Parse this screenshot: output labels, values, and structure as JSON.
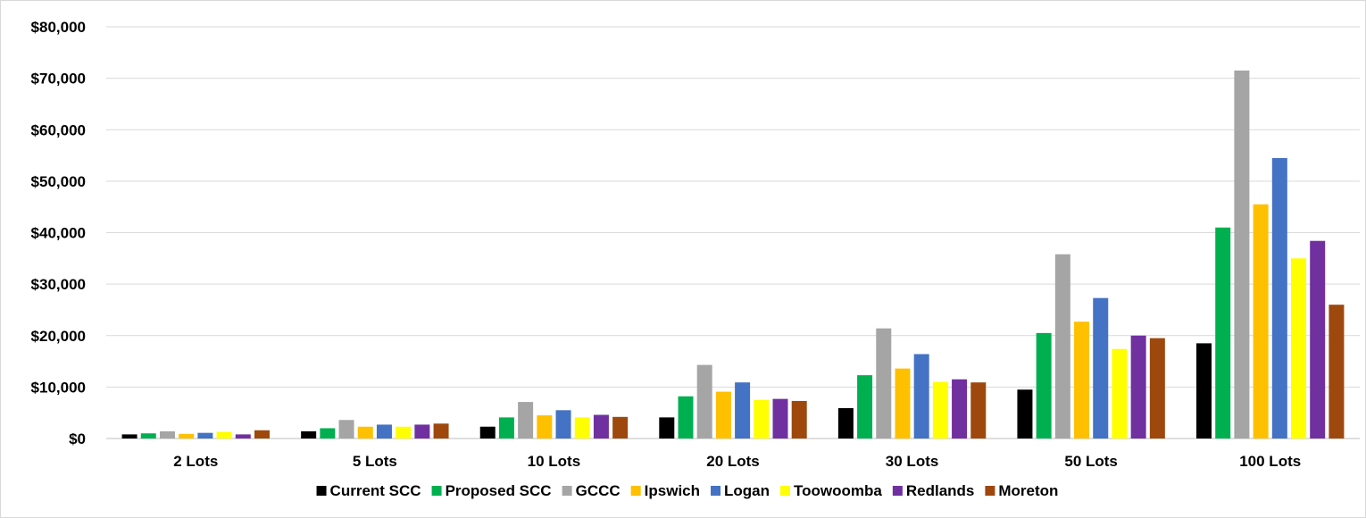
{
  "chart_data": {
    "type": "bar",
    "title": "",
    "xlabel": "",
    "ylabel": "",
    "categories": [
      "2 Lots",
      "5 Lots",
      "10 Lots",
      "20 Lots",
      "30 Lots",
      "50 Lots",
      "100 Lots"
    ],
    "ylim": [
      0,
      80000
    ],
    "yticks": [
      0,
      10000,
      20000,
      30000,
      40000,
      50000,
      60000,
      70000,
      80000
    ],
    "ytick_labels": [
      "$0",
      "$10,000",
      "$20,000",
      "$30,000",
      "$40,000",
      "$50,000",
      "$60,000",
      "$70,000",
      "$80,000"
    ],
    "grid": true,
    "legend_position": "bottom",
    "series": [
      {
        "name": "Current SCC",
        "color": "#000000",
        "values": [
          800,
          1400,
          2300,
          4100,
          5900,
          9500,
          18500
        ]
      },
      {
        "name": "Proposed SCC",
        "color": "#00b050",
        "values": [
          1000,
          2000,
          4100,
          8200,
          12300,
          20500,
          41000
        ]
      },
      {
        "name": "GCCC",
        "color": "#a5a5a5",
        "values": [
          1400,
          3600,
          7100,
          14300,
          21400,
          35800,
          71500
        ]
      },
      {
        "name": "Ipswich",
        "color": "#ffc000",
        "values": [
          900,
          2300,
          4500,
          9100,
          13600,
          22700,
          45500
        ]
      },
      {
        "name": "Logan",
        "color": "#4472c4",
        "values": [
          1100,
          2700,
          5500,
          10900,
          16400,
          27300,
          54500
        ]
      },
      {
        "name": "Toowoomba",
        "color": "#ffff00",
        "values": [
          1300,
          2300,
          4100,
          7500,
          11000,
          17400,
          35000
        ]
      },
      {
        "name": "Redlands",
        "color": "#7030a0",
        "values": [
          800,
          2700,
          4600,
          7700,
          11500,
          20000,
          38400
        ]
      },
      {
        "name": "Moreton",
        "color": "#9e480e",
        "values": [
          1600,
          2900,
          4200,
          7300,
          10900,
          19500,
          26000
        ]
      }
    ]
  }
}
